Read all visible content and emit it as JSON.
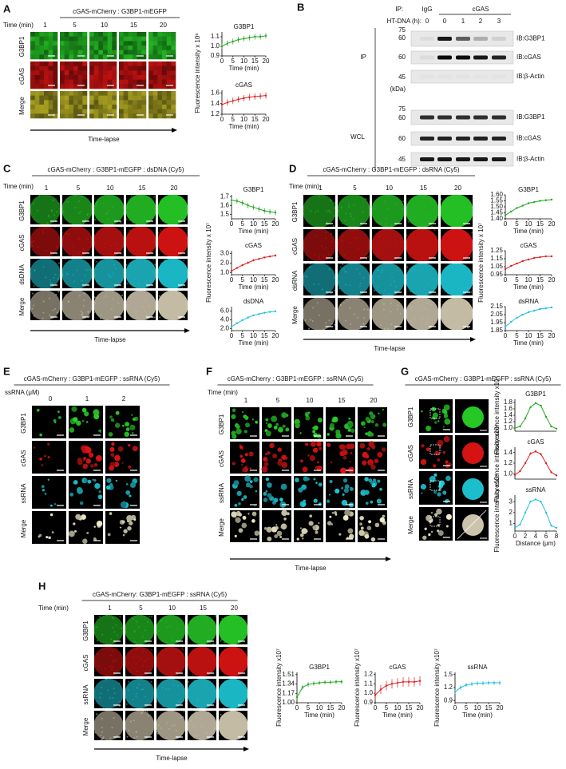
{
  "chart_data": [
    {
      "type": "line",
      "title": "G3BP1",
      "x": [
        0,
        2.5,
        5,
        7.5,
        10,
        12.5,
        15,
        17.5,
        20
      ],
      "values": [
        1.0,
        1.03,
        1.05,
        1.07,
        1.08,
        1.09,
        1.1,
        1.1,
        1.11
      ],
      "errors": [
        0.03,
        0.03,
        0.03,
        0.03,
        0.03,
        0.03,
        0.03,
        0.03,
        0.03
      ],
      "color": "#22aa22",
      "xlim": [
        0,
        20
      ],
      "xticks": [
        0,
        5,
        10,
        15,
        20
      ],
      "ylim": [
        0.9,
        1.15
      ],
      "yticks": [
        0.9,
        {
          "value": 1,
          "label": "1.0"
        },
        1.1
      ],
      "xlabel": "Time (min)"
    },
    {
      "type": "line",
      "title": "cGAS",
      "x": [
        0,
        2.5,
        5,
        7.5,
        10,
        12.5,
        15,
        17.5,
        20
      ],
      "values": [
        1.38,
        1.42,
        1.45,
        1.48,
        1.5,
        1.52,
        1.53,
        1.54,
        1.55
      ],
      "errors": [
        0.06,
        0.06,
        0.06,
        0.06,
        0.06,
        0.06,
        0.06,
        0.06,
        0.06
      ],
      "color": "#e02020",
      "xlim": [
        0,
        20
      ],
      "xticks": [
        0,
        5,
        10,
        15,
        20
      ],
      "ylim": [
        1.2,
        1.65
      ],
      "yticks": [
        1.2,
        1.4,
        1.6
      ],
      "xlabel": "Time (min)"
    },
    {
      "type": "line",
      "title": "G3BP1",
      "x": [
        0,
        2.5,
        5,
        7.5,
        10,
        12.5,
        15,
        17.5,
        20
      ],
      "values": [
        1.66,
        1.65,
        1.63,
        1.6,
        1.58,
        1.56,
        1.54,
        1.53,
        1.52
      ],
      "errors": [
        0.03,
        0.03,
        0.03,
        0.03,
        0.03,
        0.03,
        0.03,
        0.03,
        0.03
      ],
      "color": "#22aa22",
      "xlim": [
        0,
        20
      ],
      "xticks": [
        0,
        5,
        10,
        15,
        20
      ],
      "ylim": [
        1.45,
        1.72
      ],
      "yticks": [
        1.5,
        1.6,
        1.7
      ],
      "xlabel": "Time (min)"
    },
    {
      "type": "line",
      "title": "cGAS",
      "x": [
        0,
        2.5,
        5,
        7.5,
        10,
        12.5,
        15,
        17.5,
        20
      ],
      "values": [
        1.2,
        1.5,
        1.8,
        2.05,
        2.3,
        2.45,
        2.6,
        2.7,
        2.8
      ],
      "errors": [
        0.1,
        0.1,
        0.1,
        0.1,
        0.1,
        0.1,
        0.1,
        0.1,
        0.1
      ],
      "color": "#e02020",
      "xlim": [
        0,
        20
      ],
      "xticks": [
        0,
        5,
        10,
        15,
        20
      ],
      "ylim": [
        0.8,
        3.3
      ],
      "yticks": [
        {
          "value": 1,
          "label": "1.0"
        },
        {
          "value": 2,
          "label": "2.0"
        },
        {
          "value": 3,
          "label": "3.0"
        }
      ],
      "xlabel": "Time (min)"
    },
    {
      "type": "line",
      "title": "dsDNA",
      "x": [
        0,
        2.5,
        5,
        7.5,
        10,
        12.5,
        15,
        17.5,
        20
      ],
      "values": [
        2.4,
        3.2,
        3.9,
        4.5,
        5.0,
        5.3,
        5.6,
        5.8,
        5.9
      ],
      "errors": [
        0.2,
        0.2,
        0.2,
        0.2,
        0.2,
        0.2,
        0.2,
        0.2,
        0.2
      ],
      "color": "#20c0e0",
      "xlim": [
        0,
        20
      ],
      "xticks": [
        0,
        5,
        10,
        15,
        20
      ],
      "ylim": [
        1.5,
        7
      ],
      "yticks": [
        {
          "value": 2,
          "label": "2.0"
        },
        {
          "value": 4,
          "label": "4.0"
        },
        {
          "value": 6,
          "label": "6.0"
        }
      ],
      "xlabel": "Time (min)"
    },
    {
      "type": "line",
      "title": "G3BP1",
      "x": [
        0,
        2.5,
        5,
        7.5,
        10,
        12.5,
        15,
        17.5,
        20
      ],
      "values": [
        1.43,
        1.46,
        1.49,
        1.51,
        1.53,
        1.54,
        1.55,
        1.555,
        1.56
      ],
      "errors": [
        0.005,
        0.005,
        0.005,
        0.005,
        0.005,
        0.005,
        0.005,
        0.005,
        0.005
      ],
      "color": "#22aa22",
      "xlim": [
        0,
        20
      ],
      "xticks": [
        0,
        5,
        10,
        15,
        20
      ],
      "ylim": [
        1.4,
        1.6
      ],
      "yticks": [
        {
          "value": 1.4,
          "label": "1.40"
        },
        1.45,
        {
          "value": 1.5,
          "label": "1.50"
        },
        1.55,
        {
          "value": 1.6,
          "label": "1.60"
        }
      ],
      "xlabel": "Time (min)"
    },
    {
      "type": "line",
      "title": "cGAS",
      "x": [
        0,
        2.5,
        5,
        7.5,
        10,
        12.5,
        15,
        17.5,
        20
      ],
      "values": [
        1.02,
        1.06,
        1.09,
        1.12,
        1.14,
        1.16,
        1.17,
        1.18,
        1.18
      ],
      "errors": [
        0.01,
        0.01,
        0.01,
        0.01,
        0.01,
        0.01,
        0.01,
        0.01,
        0.01
      ],
      "color": "#e02020",
      "xlim": [
        0,
        20
      ],
      "xticks": [
        0,
        5,
        10,
        15,
        20
      ],
      "ylim": [
        0.95,
        1.25
      ],
      "yticks": [
        0.95,
        1.05,
        1.15,
        1.25
      ],
      "xlabel": "Time (min)"
    },
    {
      "type": "line",
      "title": "dsRNA",
      "x": [
        0,
        2.5,
        5,
        7.5,
        10,
        12.5,
        15,
        17.5,
        20
      ],
      "values": [
        1.9,
        1.96,
        2.01,
        2.05,
        2.08,
        2.1,
        2.12,
        2.13,
        2.14
      ],
      "errors": [
        0.01,
        0.01,
        0.01,
        0.01,
        0.01,
        0.01,
        0.01,
        0.01,
        0.01
      ],
      "color": "#20c0e0",
      "xlim": [
        0,
        20
      ],
      "xticks": [
        0,
        5,
        10,
        15,
        20
      ],
      "ylim": [
        1.85,
        2.15
      ],
      "yticks": [
        1.85,
        1.95,
        2.05,
        2.15
      ],
      "xlabel": "Time (min)"
    },
    {
      "type": "line",
      "title": "G3BP1",
      "x": [
        0,
        1,
        2,
        3,
        4,
        5,
        6,
        7,
        8
      ],
      "values": [
        1.0,
        1.05,
        1.3,
        1.65,
        1.78,
        1.7,
        1.35,
        1.05,
        0.98
      ],
      "errors": [
        0.02,
        0.02,
        0.02,
        0.02,
        0.02,
        0.02,
        0.02,
        0.02,
        0.02
      ],
      "color": "#22aa22",
      "xlim": [
        0,
        8
      ],
      "ylim": [
        0.9,
        1.9
      ],
      "yticks": [
        {
          "value": 1,
          "label": "1.0"
        },
        1.2,
        1.4,
        1.6,
        1.8
      ],
      "ylabel": "Fluorescence intensity x10⁴"
    },
    {
      "type": "line",
      "title": "cGAS",
      "x": [
        0,
        1,
        2,
        3,
        4,
        5,
        6,
        7,
        8
      ],
      "values": [
        0.98,
        1.05,
        1.2,
        1.38,
        1.42,
        1.37,
        1.2,
        1.03,
        0.97
      ],
      "errors": [
        0.02,
        0.02,
        0.02,
        0.02,
        0.02,
        0.02,
        0.02,
        0.02,
        0.02
      ],
      "color": "#e02020",
      "xlim": [
        0,
        8
      ],
      "ylim": [
        0.9,
        1.5
      ],
      "yticks": [
        {
          "value": 1,
          "label": "1.0"
        },
        1.2,
        1.4
      ],
      "ylabel": "Fluorescence intensity x10⁴"
    },
    {
      "type": "line",
      "title": "ssRNA",
      "x": [
        0,
        1,
        2,
        3,
        4,
        5,
        6,
        7,
        8
      ],
      "values": [
        0.6,
        0.9,
        2.0,
        3.0,
        3.2,
        3.0,
        2.0,
        0.8,
        0.6
      ],
      "errors": [
        0.05,
        0.05,
        0.05,
        0.05,
        0.05,
        0.05,
        0.05,
        0.05,
        0.05
      ],
      "color": "#20c0e0",
      "xlim": [
        0,
        8
      ],
      "xticks": [
        0,
        2,
        4,
        6,
        8
      ],
      "ylim": [
        0.3,
        3.6
      ],
      "yticks": [
        1,
        2,
        3
      ],
      "ylabel": "Fluorescence intensity x10⁴",
      "xlabel": "Distance (μm)"
    },
    {
      "type": "line",
      "title": "G3BP1",
      "x": [
        0,
        2.5,
        5,
        7.5,
        10,
        12.5,
        15,
        17.5,
        20
      ],
      "values": [
        1.1,
        1.28,
        1.33,
        1.35,
        1.36,
        1.37,
        1.37,
        1.38,
        1.38
      ],
      "errors": [
        0.04,
        0.04,
        0.04,
        0.04,
        0.04,
        0.04,
        0.04,
        0.04,
        0.04
      ],
      "color": "#22aa22",
      "xlim": [
        0,
        20
      ],
      "xticks": [
        0,
        5,
        10,
        15,
        20
      ],
      "ylim": [
        1,
        1.55
      ],
      "yticks": [
        {
          "value": 1,
          "label": "1.00"
        },
        1.17,
        1.34,
        1.51
      ],
      "ylabel": "Fluorescence intensity x10⁷",
      "xlabel": "Time (min)"
    },
    {
      "type": "line",
      "title": "cGAS",
      "x": [
        0,
        2.5,
        5,
        7.5,
        10,
        12.5,
        15,
        17.5,
        20
      ],
      "values": [
        0.98,
        1.04,
        1.08,
        1.1,
        1.11,
        1.12,
        1.12,
        1.12,
        1.13
      ],
      "errors": [
        0.05,
        0.05,
        0.05,
        0.05,
        0.05,
        0.05,
        0.05,
        0.05,
        0.05
      ],
      "color": "#e02020",
      "xlim": [
        0,
        20
      ],
      "xticks": [
        0,
        5,
        10,
        15,
        20
      ],
      "ylim": [
        0.9,
        1.22
      ],
      "yticks": [
        0.9,
        {
          "value": 1,
          "label": "1.0"
        },
        1.1,
        1.2
      ],
      "ylabel": "Fluorescence intensity x10⁷",
      "xlabel": "Time (min)"
    },
    {
      "type": "line",
      "title": "ssRNA",
      "x": [
        0,
        2.5,
        5,
        7.5,
        10,
        12.5,
        15,
        17.5,
        20
      ],
      "values": [
        1.1,
        1.2,
        1.26,
        1.28,
        1.3,
        1.3,
        1.31,
        1.31,
        1.31
      ],
      "errors": [
        0.05,
        0.05,
        0.05,
        0.05,
        0.05,
        0.05,
        0.05,
        0.05,
        0.05
      ],
      "color": "#20c0e0",
      "xlim": [
        0,
        20
      ],
      "xticks": [
        0,
        5,
        10,
        15,
        20
      ],
      "ylim": [
        0.85,
        1.55
      ],
      "yticks": [
        0.9,
        1.2,
        1.5
      ],
      "ylabel": "Fluorescence intensity x10⁷",
      "xlabel": "Time (min)"
    }
  ],
  "panels": {
    "A": {
      "letter": "A",
      "title": "cGAS-mCherry : G3BP1-mEGFP",
      "time_label": "Time (min)",
      "columns": [
        "1",
        "5",
        "10",
        "15",
        "20"
      ],
      "rows": [
        "G3BP1",
        "cGAS",
        "Merge"
      ],
      "footer": "Time-lapse",
      "ylabel": "Fluorescence intensity x 10⁶"
    },
    "B": {
      "letter": "B",
      "ip_label": "IP:",
      "ip_groups": [
        "IgG",
        "cGAS"
      ],
      "treatment_label": "HT-DNA (h):",
      "lanes": [
        "0",
        "0",
        "1",
        "2",
        "3"
      ],
      "sections": [
        "IP",
        "WCL"
      ],
      "ip_markers": [
        "75",
        "60",
        "60",
        "45"
      ],
      "unit": "(kDa)",
      "ip_blots": [
        "IB:G3BP1",
        "IB:cGAS",
        "IB:β-Actin"
      ],
      "wcl_markers": [
        "75",
        "60",
        "60",
        "45"
      ],
      "wcl_blots": [
        "IB:G3BP1",
        "IB:cGAS",
        "IB:β-Actin"
      ]
    },
    "C": {
      "letter": "C",
      "title": "cGAS-mCherry : G3BP1-mEGFP : dsDNA (Cy5)",
      "time_label": "Time (min)",
      "columns": [
        "1",
        "5",
        "10",
        "15",
        "20"
      ],
      "rows": [
        "G3BP1",
        "cGAS",
        "dsDNA",
        "Merge"
      ],
      "footer": "Time-lapse",
      "ylabel": "Fluorescence intensity x 10⁷"
    },
    "D": {
      "letter": "D",
      "title": "cGAS-mCherry : G3BP1-mEGFP : dsRNA (Cy5)",
      "time_label": "Time (min)",
      "columns": [
        "1",
        "5",
        "10",
        "15",
        "20"
      ],
      "rows": [
        "G3BP1",
        "cGAS",
        "dsRNA",
        "Merge"
      ],
      "footer": "Time-lapse",
      "ylabel": "Fluorescence intensity x 10⁷"
    },
    "E": {
      "letter": "E",
      "title": "cGAS-mCherry : G3BP1-mEGFP : ssRNA (Cy5)",
      "time_label": "ssRNA (μM)",
      "columns": [
        "0",
        "1",
        "2"
      ],
      "rows": [
        "G3BP1",
        "cGAS",
        "ssRNA",
        "Merge"
      ]
    },
    "F": {
      "letter": "F",
      "title": "cGAS-mCherry : G3BP1-mEGFP : ssRNA (Cy5)",
      "time_label": "Time (min)",
      "columns": [
        "1",
        "5",
        "10",
        "15",
        "20"
      ],
      "rows": [
        "G3BP1",
        "cGAS",
        "ssRNA",
        "Merge"
      ],
      "footer": "Time-lapse"
    },
    "G": {
      "letter": "G",
      "title": "cGAS-mCherry : G3BP1-mEGFP : ssRNA (Cy5)",
      "rows": [
        "G3BP1",
        "cGAS",
        "ssRNA",
        "Merge"
      ]
    },
    "H": {
      "letter": "H",
      "title": "cGAS-mCherry: G3BP1-mEGFP : ssRNA (Cy5)",
      "time_label": "Time (min)",
      "columns": [
        "1",
        "5",
        "10",
        "15",
        "20"
      ],
      "rows": [
        "G3BP1",
        "cGAS",
        "ssRNA",
        "Merge"
      ],
      "footer": "Time-lapse"
    }
  }
}
